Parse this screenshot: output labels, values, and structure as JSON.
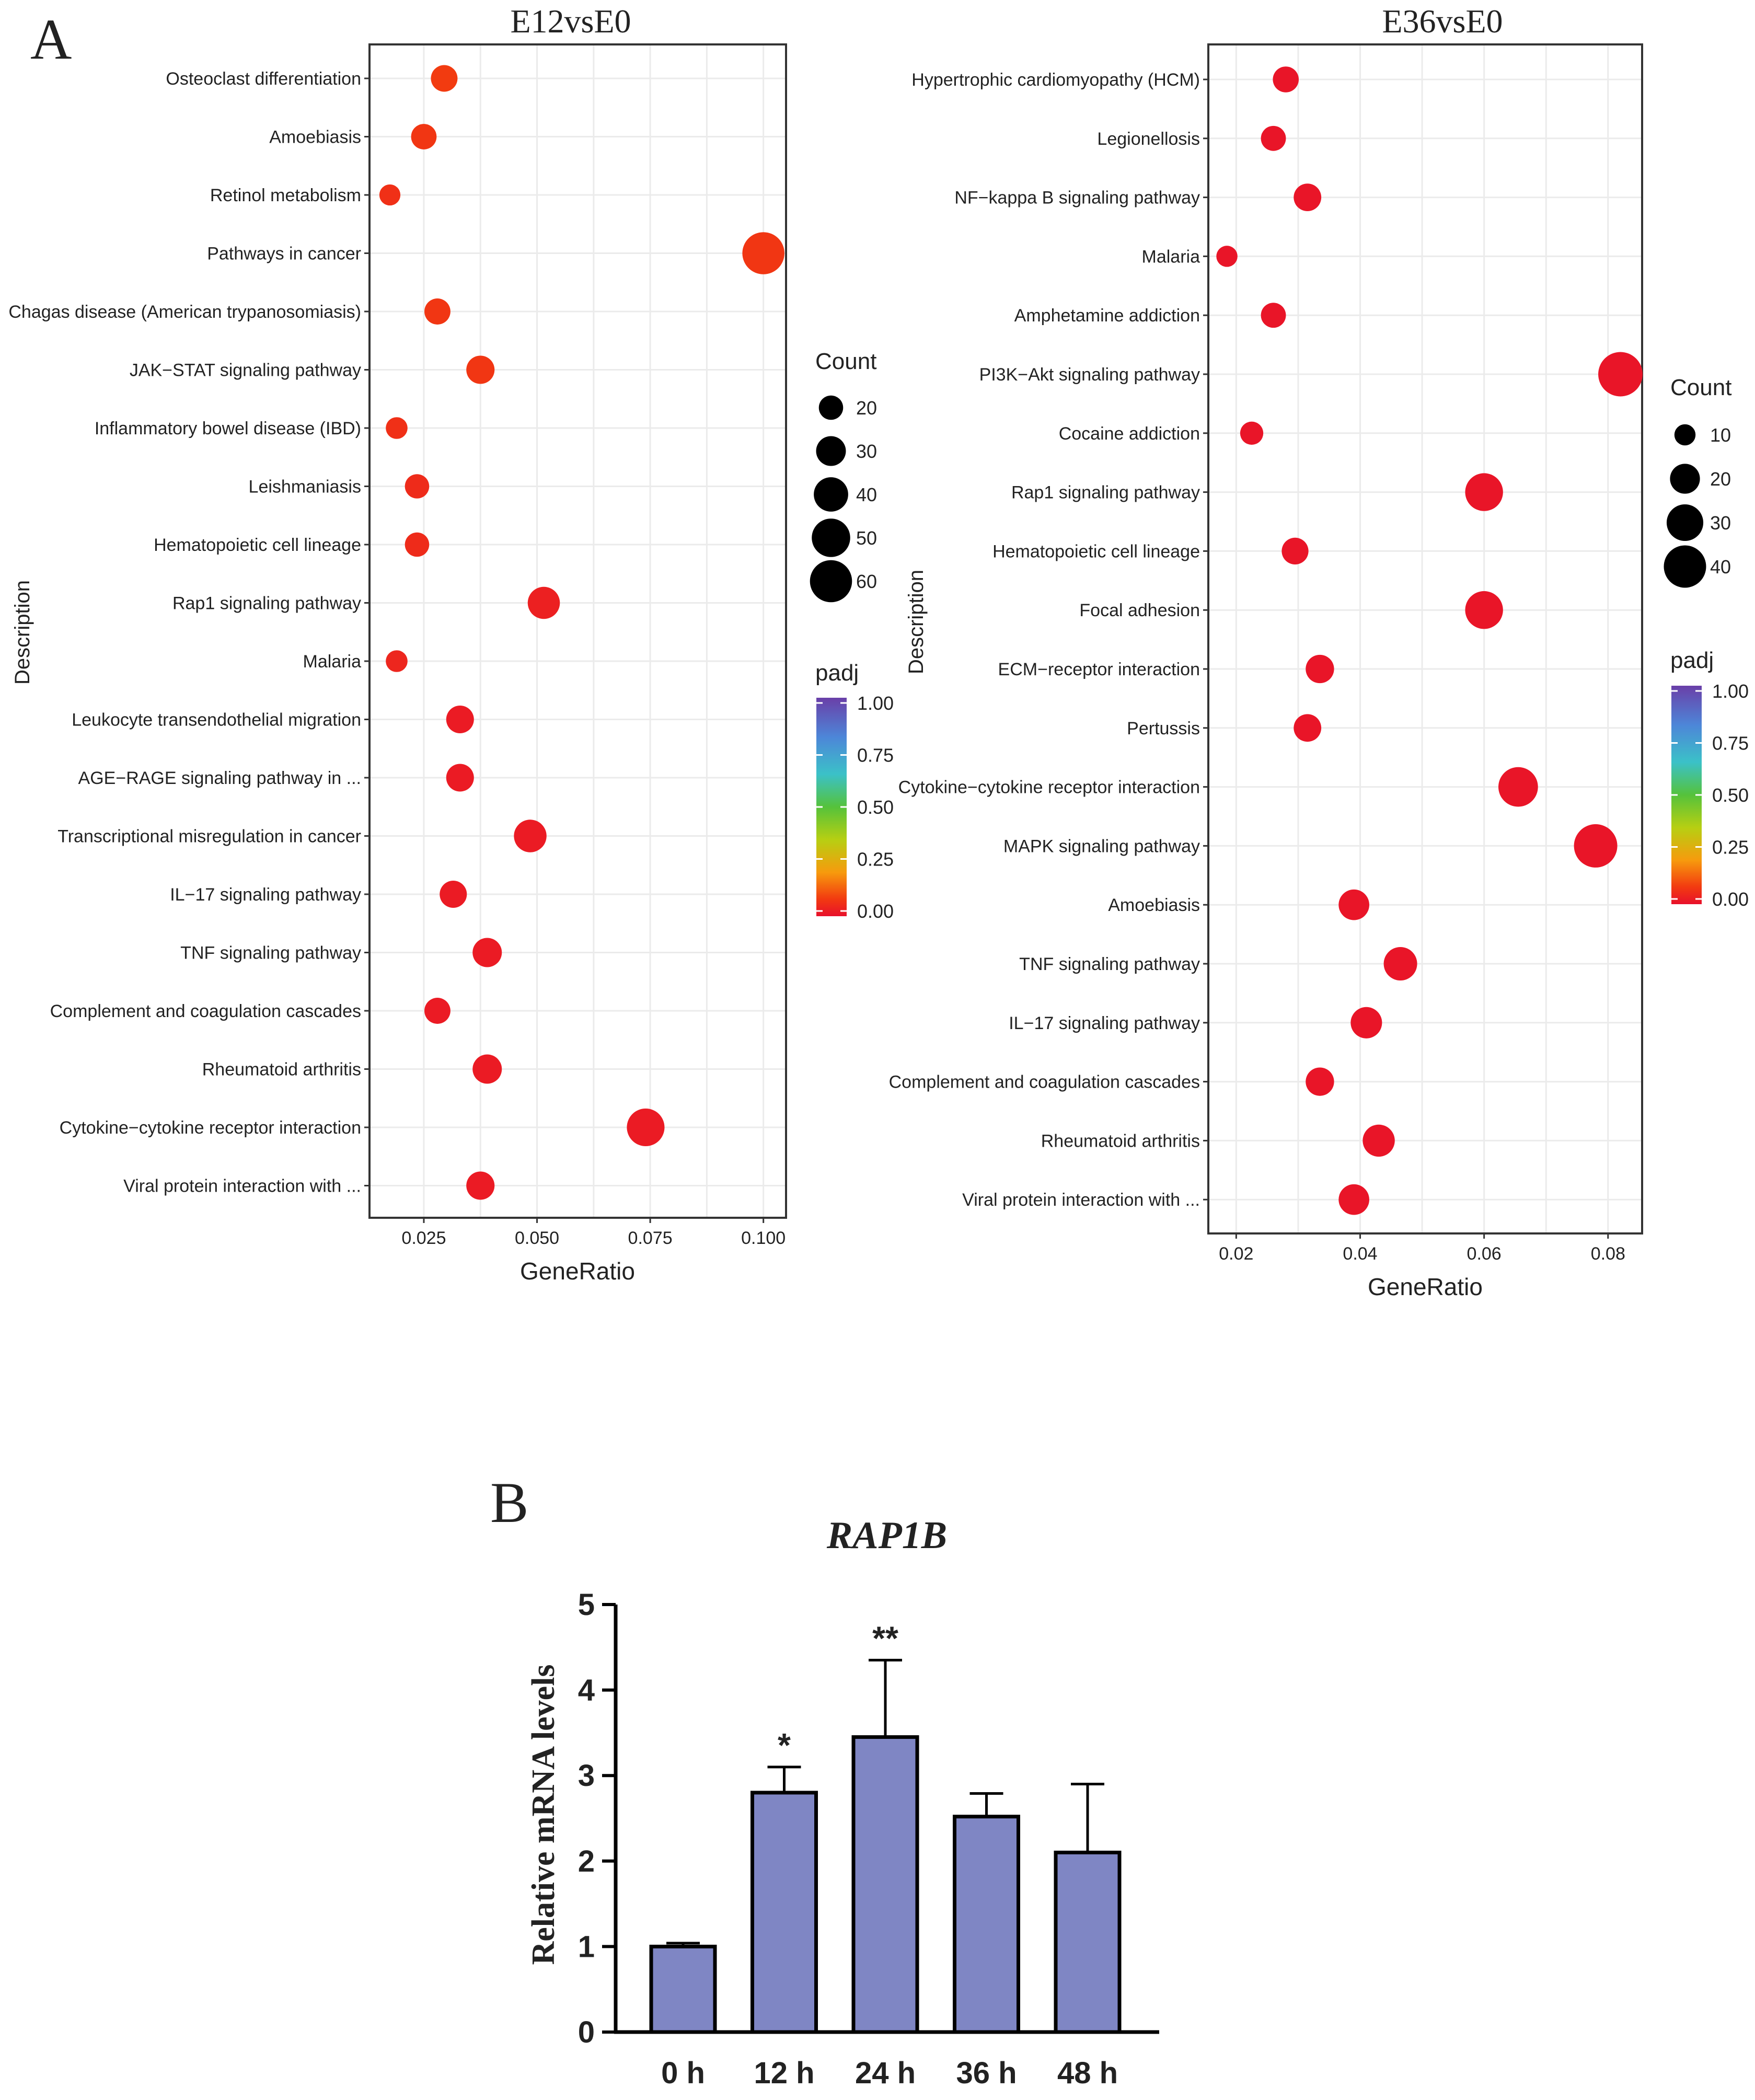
{
  "panel_labels": {
    "a": "A",
    "b": "B"
  },
  "chart_data": [
    {
      "type": "scatter",
      "title": "E12vsE0",
      "xlabel": "GeneRatio",
      "ylabel": "Description",
      "xlim": [
        0.013,
        0.105
      ],
      "xticks": [
        0.025,
        0.05,
        0.075,
        0.1
      ],
      "xtick_labels": [
        "0.025",
        "0.050",
        "0.075",
        "0.100"
      ],
      "grid": true,
      "categories": [
        "Osteoclast differentiation",
        "Amoebiasis",
        "Retinol metabolism",
        "Pathways in cancer",
        "Chagas disease (American trypanosomiasis)",
        "JAK−STAT signaling pathway",
        "Inflammatory bowel disease (IBD)",
        "Leishmaniasis",
        "Hematopoietic cell lineage",
        "Rap1 signaling pathway",
        "Malaria",
        "Leukocyte transendothelial migration",
        "AGE−RAGE signaling pathway in ...",
        "Transcriptional misregulation in cancer",
        "IL−17 signaling pathway",
        "TNF signaling pathway",
        "Complement and coagulation cascades",
        "Rheumatoid arthritis",
        "Cytokine−cytokine receptor interaction",
        "Viral protein interaction with ..."
      ],
      "gene_ratio": [
        0.0295,
        0.025,
        0.0175,
        0.1,
        0.028,
        0.0375,
        0.019,
        0.0235,
        0.0235,
        0.0515,
        0.019,
        0.033,
        0.033,
        0.0485,
        0.0315,
        0.039,
        0.028,
        0.039,
        0.074,
        0.0375
      ],
      "count": [
        24,
        22,
        15,
        60,
        23,
        27,
        16,
        20,
        20,
        35,
        16,
        26,
        26,
        36,
        25,
        29,
        23,
        29,
        48,
        27
      ],
      "padj": [
        0.08,
        0.07,
        0.06,
        0.07,
        0.07,
        0.07,
        0.06,
        0.05,
        0.05,
        0.03,
        0.04,
        0.02,
        0.02,
        0.02,
        0.02,
        0.02,
        0.02,
        0.02,
        0.02,
        0.02
      ],
      "legend": {
        "size_title": "Count",
        "size_values": [
          20,
          30,
          40,
          50,
          60
        ],
        "color_title": "padj",
        "color_ticks": [
          "1.00",
          "0.75",
          "0.50",
          "0.25",
          "0.00"
        ],
        "placement": "right"
      }
    },
    {
      "type": "scatter",
      "title": "E36vsE0",
      "xlabel": "GeneRatio",
      "ylabel": "Description",
      "xlim": [
        0.0155,
        0.0855
      ],
      "xticks": [
        0.02,
        0.04,
        0.06,
        0.08
      ],
      "xtick_labels": [
        "0.02",
        "0.04",
        "0.06",
        "0.08"
      ],
      "grid": true,
      "categories": [
        "Hypertrophic cardiomyopathy (HCM)",
        "Legionellosis",
        "NF−kappa B signaling pathway",
        "Malaria",
        "Amphetamine addiction",
        "PI3K−Akt signaling pathway",
        "Cocaine addiction",
        "Rap1 signaling pathway",
        "Hematopoietic cell lineage",
        "Focal adhesion",
        "ECM−receptor interaction",
        "Pertussis",
        "Cytokine−cytokine receptor interaction",
        "MAPK signaling pathway",
        "Amoebiasis",
        "TNF signaling pathway",
        "IL−17 signaling pathway",
        "Complement and coagulation cascades",
        "Rheumatoid arthritis",
        "Viral protein interaction with ..."
      ],
      "gene_ratio": [
        0.028,
        0.026,
        0.0315,
        0.0185,
        0.026,
        0.082,
        0.0225,
        0.06,
        0.0295,
        0.06,
        0.0335,
        0.0315,
        0.0655,
        0.078,
        0.039,
        0.0465,
        0.041,
        0.0335,
        0.043,
        0.039
      ],
      "count": [
        15,
        14,
        17,
        10,
        14,
        44,
        12,
        32,
        16,
        32,
        18,
        17,
        35,
        42,
        21,
        25,
        22,
        18,
        23,
        21
      ],
      "padj": [
        0.01,
        0.01,
        0.01,
        0.01,
        0.01,
        0.01,
        0.01,
        0.01,
        0.01,
        0.01,
        0.01,
        0.01,
        0.01,
        0.01,
        0.01,
        0.01,
        0.01,
        0.01,
        0.01,
        0.01
      ],
      "legend": {
        "size_title": "Count",
        "size_values": [
          10,
          20,
          30,
          40
        ],
        "color_title": "padj",
        "color_ticks": [
          "1.00",
          "0.75",
          "0.50",
          "0.25",
          "0.00"
        ],
        "placement": "right"
      }
    },
    {
      "type": "bar",
      "title": "RAP1B",
      "xlabel": "",
      "ylabel": "Relative mRNA levels",
      "ylim": [
        0,
        5
      ],
      "yticks": [
        "0",
        "1",
        "2",
        "3",
        "4",
        "5"
      ],
      "categories": [
        "0 h",
        "12 h",
        "24 h",
        "36 h",
        "48 h"
      ],
      "values": [
        1.0,
        2.8,
        3.45,
        2.52,
        2.1
      ],
      "error": [
        0.04,
        0.3,
        0.9,
        0.27,
        0.8
      ],
      "significance": [
        "",
        "*",
        "**",
        "",
        ""
      ],
      "colors": {
        "bar": "#7f86c4",
        "outline": "#000000"
      }
    }
  ]
}
